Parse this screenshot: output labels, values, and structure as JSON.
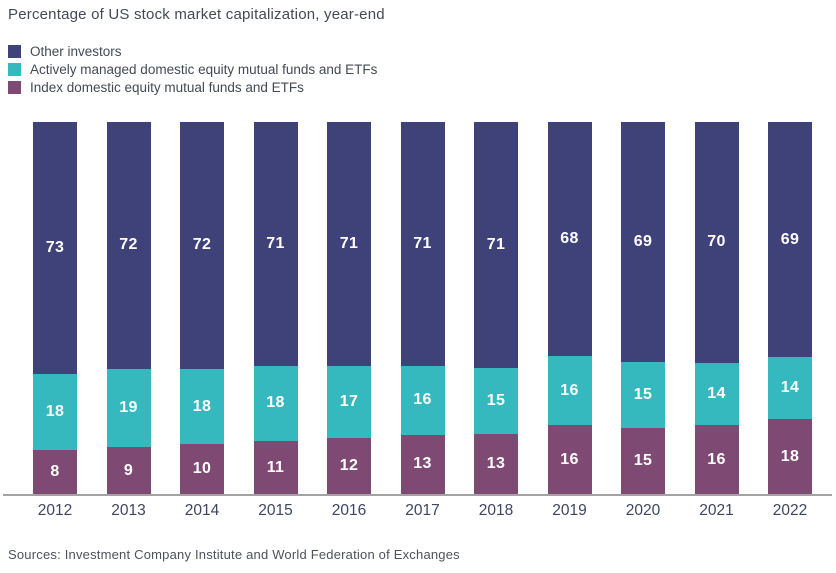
{
  "title": "Percentage of US stock market capitalization, year-end",
  "source": "Sources: Investment Company Institute and World Federation of Exchanges",
  "colors": {
    "other_investors": "#3e4278",
    "active_funds": "#35b9bf",
    "index_funds": "#7e4a73",
    "axis_line": "#a3a3a3",
    "value_label": "#ffffff"
  },
  "legend": [
    {
      "label": "Other investors",
      "color": "#3e4278"
    },
    {
      "label": "Actively managed domestic equity mutual funds and ETFs",
      "color": "#35b9bf"
    },
    {
      "label": "Index domestic equity mutual funds and ETFs",
      "color": "#7e4a73"
    }
  ],
  "chart_data": {
    "type": "bar",
    "stacked": true,
    "title": "Percentage of US stock market capitalization, year-end",
    "xlabel": "",
    "ylabel": "",
    "ylim": [
      0,
      100
    ],
    "grid": false,
    "legend_position": "top-left",
    "value_labels": true,
    "categories": [
      "2012",
      "2013",
      "2014",
      "2015",
      "2016",
      "2017",
      "2018",
      "2019",
      "2020",
      "2021",
      "2022"
    ],
    "series": [
      {
        "name": "Other investors",
        "color": "#3e4278",
        "values": [
          73,
          72,
          72,
          71,
          71,
          71,
          71,
          68,
          69,
          70,
          69
        ]
      },
      {
        "name": "Actively managed domestic equity mutual funds and ETFs",
        "color": "#35b9bf",
        "values": [
          18,
          19,
          18,
          18,
          17,
          16,
          15,
          16,
          15,
          14,
          14
        ]
      },
      {
        "name": "Index domestic equity mutual funds and ETFs",
        "color": "#7e4a73",
        "values": [
          8,
          9,
          10,
          11,
          12,
          13,
          13,
          16,
          15,
          16,
          18
        ]
      }
    ]
  }
}
